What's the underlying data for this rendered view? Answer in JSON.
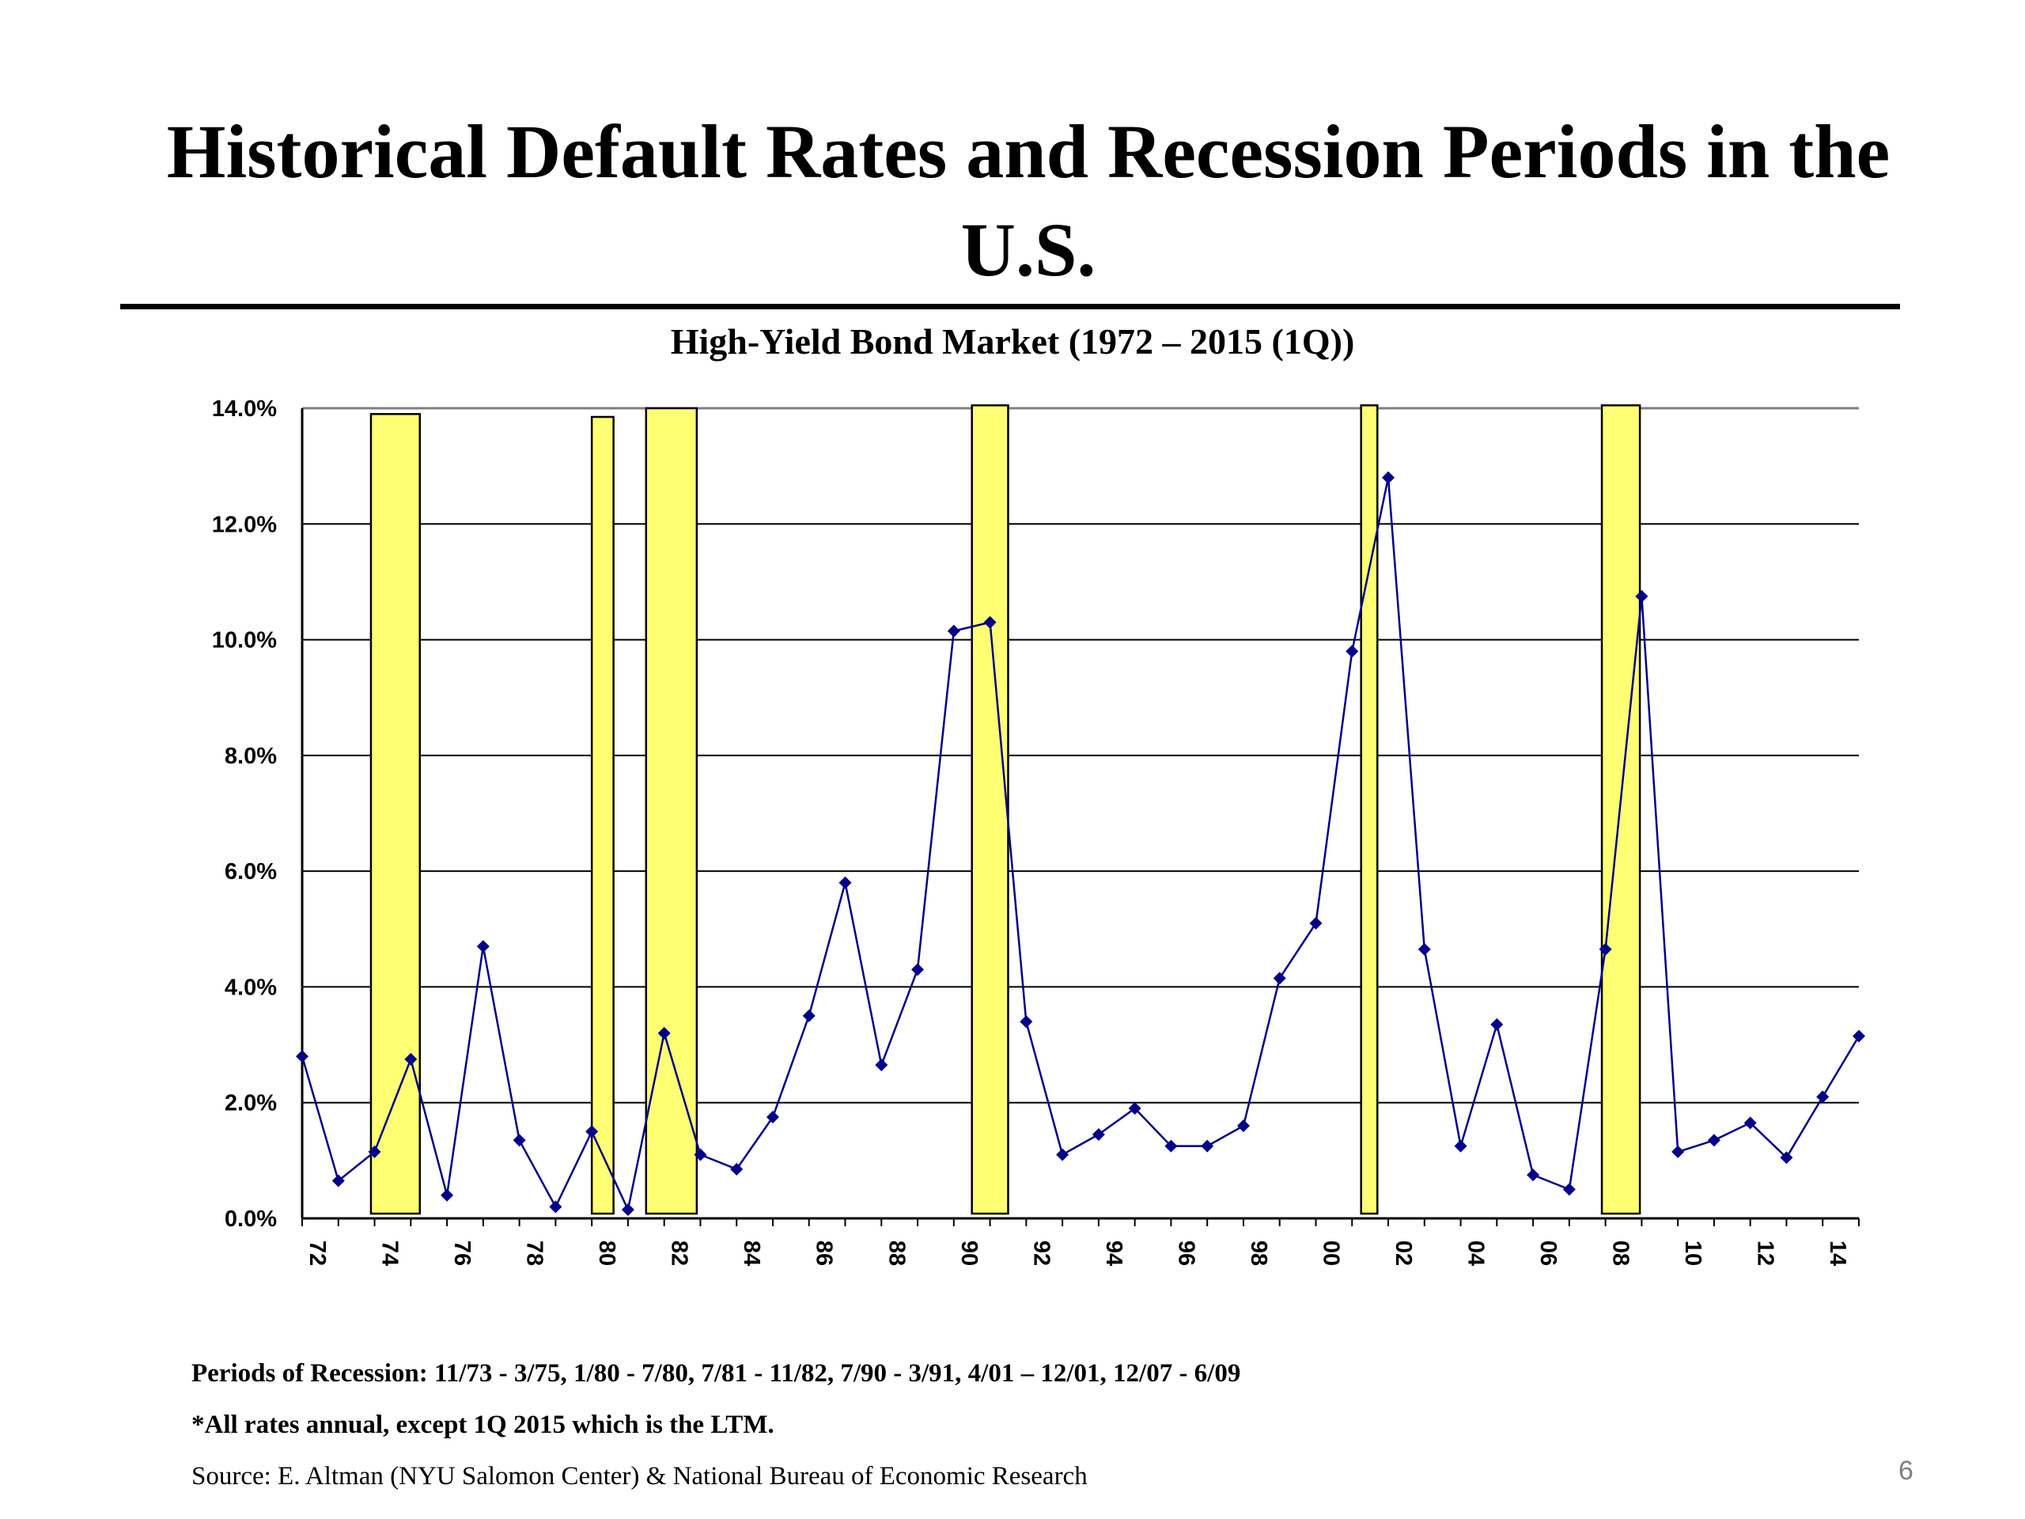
{
  "slide": {
    "title": "Historical Default Rates and Recession Periods in the U.S.",
    "notes": {
      "recessions": "Periods of Recession: 11/73 - 3/75, 1/80 - 7/80, 7/81 - 11/82, 7/90 - 3/91, 4/01 – 12/01, 12/07 - 6/09",
      "rates": "*All rates annual, except 1Q 2015 which is the LTM.",
      "source": "Source: E. Altman (NYU Salomon Center) & National Bureau of Economic Research"
    },
    "page_number": "6"
  },
  "chart_data": {
    "type": "line",
    "title": "High-Yield Bond Market (1972 – 2015 (1Q))",
    "xlabel": "",
    "ylabel": "",
    "ylim": [
      0,
      14
    ],
    "yticks": [
      "0.0%",
      "2.0%",
      "4.0%",
      "6.0%",
      "8.0%",
      "10.0%",
      "12.0%",
      "14.0%"
    ],
    "xticks": [
      "72",
      "74",
      "76",
      "78",
      "80",
      "82",
      "84",
      "86",
      "88",
      "90",
      "92",
      "94",
      "96",
      "98",
      "00",
      "02",
      "04",
      "06",
      "08",
      "10",
      "12",
      "14"
    ],
    "grid": true,
    "x": [
      1972,
      1973,
      1974,
      1975,
      1976,
      1977,
      1978,
      1979,
      1980,
      1981,
      1982,
      1983,
      1984,
      1985,
      1986,
      1987,
      1988,
      1989,
      1990,
      1991,
      1992,
      1993,
      1994,
      1995,
      1996,
      1997,
      1998,
      1999,
      2000,
      2001,
      2002,
      2003,
      2004,
      2005,
      2006,
      2007,
      2008,
      2009,
      2010,
      2011,
      2012,
      2013,
      2014,
      2015
    ],
    "series": [
      {
        "values": [
          2.8,
          0.65,
          1.15,
          2.75,
          0.4,
          4.7,
          1.35,
          0.2,
          1.5,
          0.15,
          3.2,
          1.1,
          0.85,
          1.75,
          3.5,
          5.8,
          2.65,
          4.3,
          10.15,
          10.3,
          3.4,
          1.1,
          1.45,
          1.9,
          1.25,
          1.25,
          1.6,
          4.15,
          5.1,
          9.8,
          12.8,
          4.65,
          1.25,
          3.35,
          0.75,
          0.5,
          4.65,
          10.75,
          1.15,
          1.35,
          1.65,
          1.05,
          2.1,
          3.15
        ],
        "color": "#00008b"
      }
    ],
    "recession_bands": [
      {
        "start": 1973.9,
        "end": 1975.25,
        "top": 13.9
      },
      {
        "start": 1980.0,
        "end": 1980.6,
        "top": 13.85
      },
      {
        "start": 1981.5,
        "end": 1982.9,
        "top": 14.0
      },
      {
        "start": 1990.5,
        "end": 1991.5,
        "top": 14.05
      },
      {
        "start": 2001.25,
        "end": 2001.7,
        "top": 14.05
      },
      {
        "start": 2007.9,
        "end": 2008.95,
        "top": 14.05
      }
    ],
    "band_color": "#ffff73",
    "gridline_color": "#808080"
  }
}
